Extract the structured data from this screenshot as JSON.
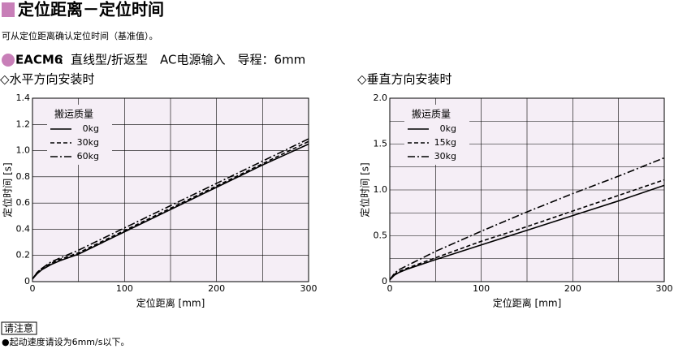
{
  "header": {
    "title": "定位距离－定位时间",
    "description": "可从定位距离确认定位时间（基准值）。",
    "model": "EACM6",
    "spec": "：直线型/折返型　AC电源输入　导程：6mm"
  },
  "chart_data": [
    {
      "type": "line",
      "title": "◇水平方向安装时",
      "x_label": "定位距离 [mm]",
      "y_label": "定位时间 [s]",
      "legend_title": "搬运质量",
      "legend": "upper left",
      "grid": true,
      "minor_grid": true,
      "xlim": [
        0,
        300
      ],
      "xticks": [
        0,
        100,
        200,
        300
      ],
      "ylim": [
        0,
        1.4
      ],
      "yticks": [
        0,
        0.2,
        0.4,
        0.6,
        0.8,
        {
          "value": 1,
          "label": "1.0"
        },
        1.2,
        1.4
      ],
      "x": [
        0,
        5,
        10,
        20,
        30,
        50,
        100,
        150,
        200,
        250,
        300
      ],
      "series": [
        {
          "name": "0kg",
          "color": "#000000",
          "style": "solid",
          "values": [
            0.02,
            0.06,
            0.09,
            0.13,
            0.16,
            0.21,
            0.38,
            0.55,
            0.72,
            0.89,
            1.05
          ]
        },
        {
          "name": "30kg",
          "color": "#000000",
          "style": "dashed",
          "values": [
            0.02,
            0.07,
            0.1,
            0.14,
            0.17,
            0.22,
            0.39,
            0.56,
            0.73,
            0.9,
            1.07
          ]
        },
        {
          "name": "60kg",
          "color": "#000000",
          "style": "dashdot",
          "values": [
            0.02,
            0.07,
            0.1,
            0.15,
            0.18,
            0.24,
            0.41,
            0.58,
            0.75,
            0.92,
            1.09
          ]
        }
      ]
    },
    {
      "type": "line",
      "title": "◇垂直方向安装时",
      "x_label": "定位距离 [mm]",
      "y_label": "定位时间 [s]",
      "legend_title": "搬运质量",
      "legend": "upper left",
      "grid": true,
      "minor_grid": true,
      "xlim": [
        0,
        300
      ],
      "xticks": [
        0,
        100,
        200,
        300
      ],
      "ylim": [
        0,
        2
      ],
      "yticks": [
        0,
        0.5,
        {
          "value": 1,
          "label": "1.0"
        },
        1.5,
        {
          "value": 2,
          "label": "2.0"
        }
      ],
      "x": [
        0,
        5,
        10,
        20,
        50,
        100,
        150,
        200,
        250,
        300
      ],
      "series": [
        {
          "name": "0kg",
          "color": "#000000",
          "style": "solid",
          "values": [
            0.02,
            0.07,
            0.1,
            0.14,
            0.24,
            0.4,
            0.56,
            0.72,
            0.88,
            1.05
          ]
        },
        {
          "name": "15kg",
          "color": "#000000",
          "style": "dashed",
          "values": [
            0.02,
            0.08,
            0.11,
            0.15,
            0.26,
            0.44,
            0.6,
            0.77,
            0.94,
            1.11
          ]
        },
        {
          "name": "30kg",
          "color": "#000000",
          "style": "dashdot",
          "values": [
            0.02,
            0.09,
            0.13,
            0.18,
            0.33,
            0.55,
            0.76,
            0.96,
            1.15,
            1.35
          ]
        }
      ]
    }
  ],
  "footer": {
    "notice": "请注意",
    "note": "●起动速度请设为6mm/s以下。"
  }
}
